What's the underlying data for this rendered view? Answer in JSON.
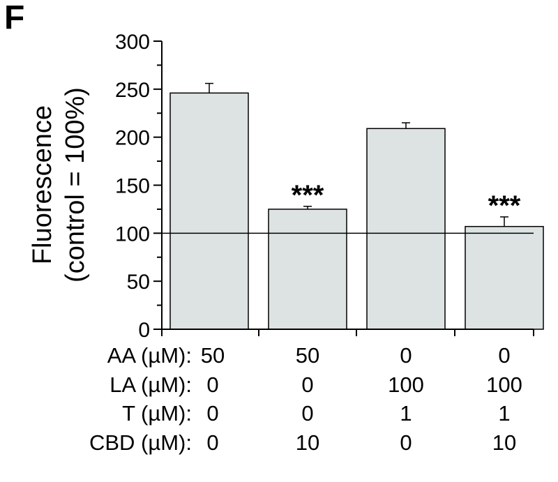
{
  "panel_label": "F",
  "chart_data": {
    "type": "bar",
    "ylabel_line1": "Fluorescence",
    "ylabel_line2": "(control = 100%)",
    "ylim": [
      0,
      300
    ],
    "yticks": [
      0,
      50,
      100,
      150,
      200,
      250,
      300
    ],
    "minor_tick_step": 25,
    "reference_line": 100,
    "bar_color": "#dde3e2",
    "values": [
      246,
      125,
      209,
      107
    ],
    "errors": [
      10,
      3,
      6,
      10
    ],
    "significance": [
      "",
      "***",
      "",
      "***"
    ],
    "conditions": [
      {
        "label": "AA (µM):",
        "values": [
          "50",
          "50",
          "0",
          "0"
        ]
      },
      {
        "label": "LA (µM):",
        "values": [
          "0",
          "0",
          "100",
          "100"
        ]
      },
      {
        "label": "T (µM):",
        "values": [
          "0",
          "0",
          "1",
          "1"
        ]
      },
      {
        "label": "CBD (µM):",
        "values": [
          "0",
          "10",
          "0",
          "10"
        ]
      }
    ]
  }
}
